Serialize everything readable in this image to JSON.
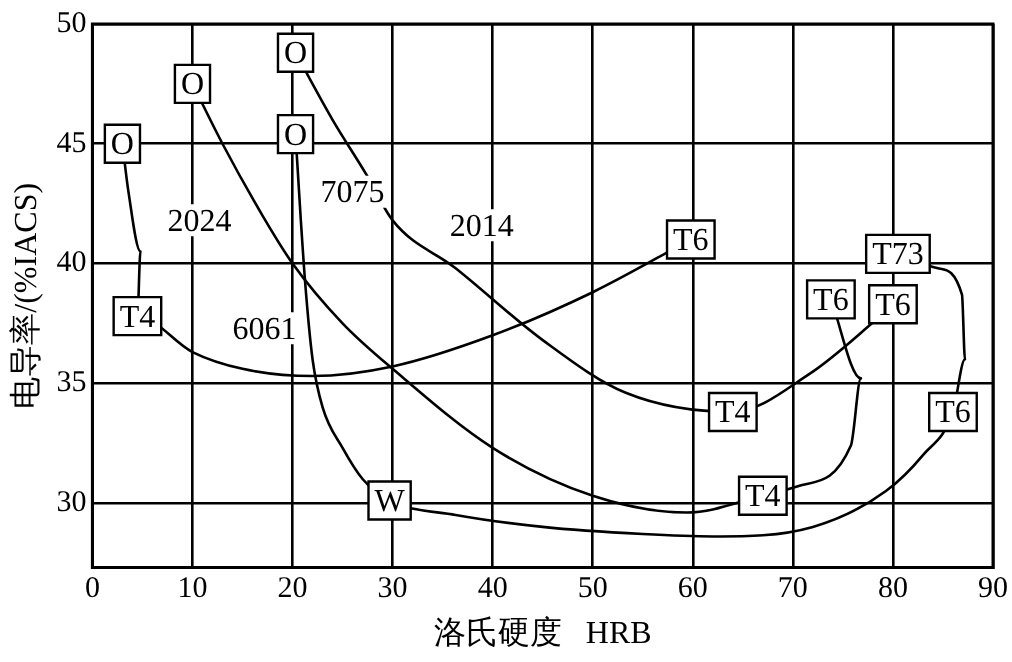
{
  "chart_data": {
    "type": "line",
    "xlabel": "洛氏硬度   HRB",
    "ylabel": "电导率/(%IACS)",
    "xlim": [
      0,
      90
    ],
    "xticks": [
      0,
      10,
      20,
      30,
      40,
      50,
      60,
      70,
      80,
      90
    ],
    "ylim": [
      27.3,
      50
    ],
    "yticks": [
      30,
      35,
      40,
      45,
      50
    ],
    "grid": true,
    "legend": false,
    "marker": "none",
    "line_style": "solid",
    "series": [
      {
        "color": "#000000",
        "x": [
          3,
          3.6,
          4.8,
          4.5,
          10,
          15,
          22,
          30,
          40,
          50,
          59.8
        ],
        "values": [
          45,
          43,
          40.5,
          37.8,
          36.3,
          35.6,
          35.3,
          35.7,
          37,
          38.8,
          41
        ],
        "value_labels": [
          "O",
          null,
          null,
          "T4",
          null,
          null,
          null,
          null,
          null,
          null,
          "T6"
        ]
      },
      {
        "color": "#000000",
        "x": [
          10,
          13,
          17,
          20,
          25,
          30,
          40,
          50,
          59.4,
          67,
          70.5,
          75.8,
          76.8,
          73.8
        ],
        "values": [
          47.5,
          45,
          42,
          40,
          37.5,
          35.6,
          32.3,
          30.3,
          29.6,
          30.3,
          30.7,
          32.4,
          35.2,
          38.5
        ],
        "value_labels": [
          "O",
          null,
          null,
          null,
          null,
          null,
          null,
          null,
          null,
          "T4",
          null,
          null,
          null,
          "T6"
        ]
      },
      {
        "color": "#000000",
        "x": [
          20.3,
          24,
          27.4,
          30,
          36.3,
          45,
          53.3,
          64,
          71.7,
          77.9,
          80
        ],
        "values": [
          48.8,
          46,
          43.7,
          41.8,
          39.8,
          36.8,
          34.6,
          33.8,
          35.4,
          37.5,
          38.3
        ],
        "value_labels": [
          "O",
          null,
          null,
          null,
          null,
          null,
          null,
          "T4",
          null,
          null,
          "T6"
        ]
      },
      {
        "color": "#000000",
        "x": [
          20.3,
          20.8,
          21.3,
          22,
          23,
          25,
          27,
          29.7,
          36.3,
          45,
          55,
          62,
          72,
          79.3,
          83,
          86,
          87.2,
          86.9,
          84.5,
          80.5
        ],
        "values": [
          45.4,
          42,
          39,
          36,
          34,
          32.3,
          31,
          30.1,
          29.5,
          29,
          28.7,
          28.6,
          29,
          30.5,
          32,
          33.8,
          36,
          38.7,
          39.8,
          40.4
        ],
        "value_labels": [
          "O",
          null,
          null,
          null,
          null,
          null,
          null,
          "W",
          null,
          null,
          null,
          null,
          null,
          null,
          null,
          "T6",
          null,
          null,
          null,
          "T73"
        ]
      }
    ],
    "annotations": [
      {
        "text": "6061",
        "x": 17.2,
        "y": 37.3
      },
      {
        "text": "2024",
        "x": 10.7,
        "y": 41.8
      },
      {
        "text": "7075",
        "x": 26,
        "y": 43
      },
      {
        "text": "2014",
        "x": 38.9,
        "y": 41.6
      }
    ]
  }
}
